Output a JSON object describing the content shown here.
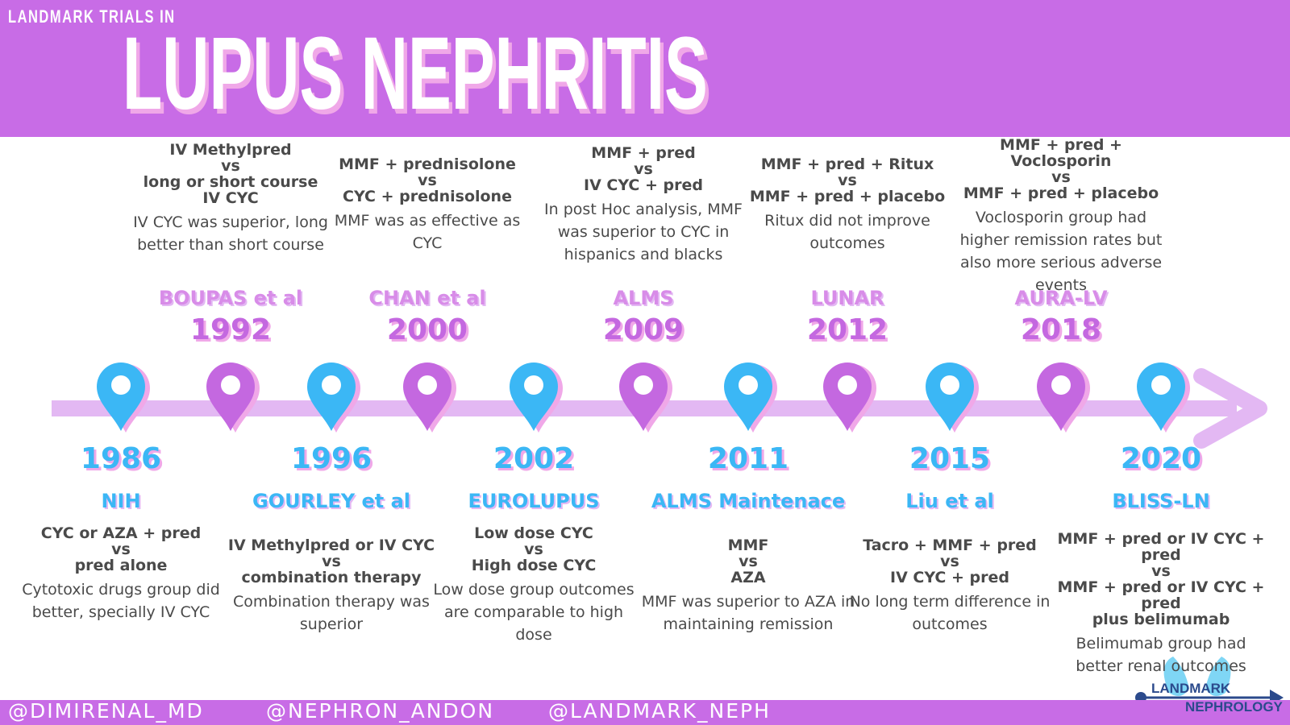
{
  "header": {
    "subtitle": "LANDMARK TRIALS IN",
    "title": "LUPUS NEPHRITIS"
  },
  "top_trials": [
    {
      "name": "BOUPAS et al",
      "year": "1992",
      "comparison": [
        "IV Methylpred",
        "vs",
        "long or short course",
        "IV CYC"
      ],
      "result": "IV CYC was superior, long better than short course"
    },
    {
      "name": "CHAN et al",
      "year": "2000",
      "comparison": [
        "MMF + prednisolone",
        "vs",
        "CYC + prednisolone"
      ],
      "result": "MMF was as effective as CYC"
    },
    {
      "name": "ALMS",
      "year": "2009",
      "comparison": [
        "MMF + pred",
        "vs",
        "IV CYC + pred"
      ],
      "result": "In post Hoc analysis, MMF was superior to CYC in hispanics and blacks"
    },
    {
      "name": "LUNAR",
      "year": "2012",
      "comparison": [
        "MMF + pred + Ritux",
        "vs",
        "MMF + pred + placebo"
      ],
      "result": "Ritux did not improve outcomes"
    },
    {
      "name": "AURA-LV",
      "year": "2018",
      "comparison": [
        "MMF + pred + Voclosporin",
        "vs",
        "MMF + pred + placebo"
      ],
      "result": "Voclosporin group had higher remission rates but also more serious adverse events"
    }
  ],
  "bottom_trials": [
    {
      "year": "1986",
      "name": "NIH",
      "comparison": [
        "CYC or AZA + pred",
        "vs",
        "pred alone"
      ],
      "result": "Cytotoxic drugs group did better, specially IV CYC"
    },
    {
      "year": "1996",
      "name": "GOURLEY et al",
      "comparison": [
        "IV Methylpred or IV CYC",
        "vs",
        "combination therapy"
      ],
      "result": "Combination therapy was superior"
    },
    {
      "year": "2002",
      "name": "EUROLUPUS",
      "comparison": [
        "Low dose CYC",
        "vs",
        "High dose CYC"
      ],
      "result": "Low dose group outcomes are comparable to high dose"
    },
    {
      "year": "2011",
      "name": "ALMS Maintenace",
      "comparison": [
        "MMF",
        "vs",
        "AZA"
      ],
      "result": "MMF was superior to AZA in maintaining remission"
    },
    {
      "year": "2015",
      "name": "Liu et al",
      "comparison": [
        "Tacro + MMF + pred",
        "vs",
        "IV CYC + pred"
      ],
      "result": "No long term difference in outcomes"
    },
    {
      "year": "2020",
      "name": "BLISS-LN",
      "comparison": [
        "MMF + pred or IV CYC + pred",
        "vs",
        "MMF + pred or IV CYC + pred",
        "plus belimumab"
      ],
      "result": "Belimumab group had better renal outcomes"
    }
  ],
  "footer": {
    "handles": [
      "@DIMIRENAL_MD",
      "@NEPHRON_ANDON",
      "@LANDMARK_NEPH"
    ]
  },
  "logo": {
    "line1": "LANDMARK",
    "line2": "NEPHROLOGY"
  }
}
